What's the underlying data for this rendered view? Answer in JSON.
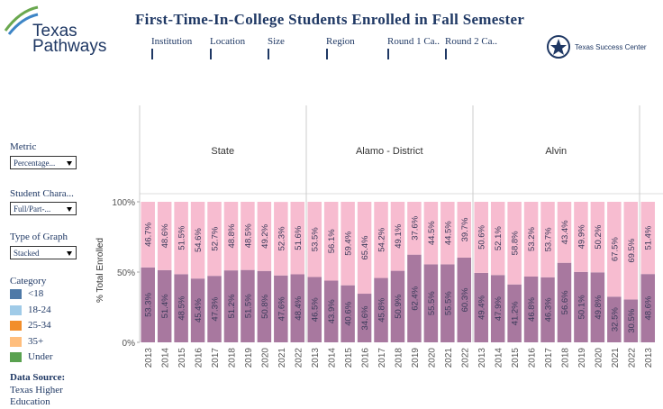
{
  "header": {
    "logo": "Texas Pathways",
    "title": "First-Time-In-College Students Enrolled in Fall Semester",
    "filters": [
      "Institution",
      "Location",
      "Size",
      "Region",
      "Round 1 Ca..",
      "Round 2 Ca.."
    ],
    "brand": "Texas Success Center"
  },
  "sidebar": {
    "controls": [
      {
        "label": "Metric",
        "value": "Percentage..."
      },
      {
        "label": "Student Chara...",
        "value": "Full/Part-..."
      },
      {
        "label": "Type of Graph",
        "value": "Stacked"
      }
    ],
    "legend_title": "Category",
    "legend": [
      {
        "name": "<18",
        "color": "#4e79a7"
      },
      {
        "name": "18-24",
        "color": "#a0cbe8"
      },
      {
        "name": "25-34",
        "color": "#f28e2b"
      },
      {
        "name": "35+",
        "color": "#ffbe7d"
      },
      {
        "name": "Under",
        "color": "#59a14f"
      }
    ],
    "source_title": "Data Source:",
    "source": [
      "Texas Higher",
      "Education"
    ]
  },
  "chart_data": [
    {
      "type": "bar",
      "stacked": true,
      "title": "State",
      "ylabel": "% Total Enrolled",
      "ylim": [
        0,
        100
      ],
      "yticks": [
        {
          "value": 0,
          "label": "0%"
        },
        {
          "value": 50,
          "label": "50%"
        },
        {
          "value": 100,
          "label": "100%"
        }
      ],
      "categories": [
        "2013",
        "2014",
        "2015",
        "2016",
        "2017",
        "2018",
        "2019",
        "2020",
        "2021",
        "2022"
      ],
      "series": [
        {
          "color": "#a8789f",
          "values": [
            53.3,
            51.4,
            48.5,
            45.4,
            47.3,
            51.2,
            51.5,
            50.8,
            47.6,
            48.4
          ],
          "value_labels": [
            "53.3%",
            "51.4%",
            "48.5%",
            "45.4%",
            "47.3%",
            "51.2%",
            "51.5%",
            "50.8%",
            "47.6%",
            "48.4%"
          ]
        },
        {
          "color": "#f7bcd0",
          "values": [
            46.7,
            48.6,
            51.5,
            54.6,
            52.7,
            48.8,
            48.5,
            49.2,
            52.3,
            51.6
          ],
          "value_labels": [
            "46.7%",
            "48.6%",
            "51.5%",
            "54.6%",
            "52.7%",
            "48.8%",
            "48.5%",
            "49.2%",
            "52.3%",
            "51.6%"
          ]
        }
      ]
    },
    {
      "type": "bar",
      "stacked": true,
      "title": "Alamo - District",
      "ylim": [
        0,
        100
      ],
      "categories": [
        "2013",
        "2014",
        "2015",
        "2016",
        "2017",
        "2018",
        "2019",
        "2020",
        "2021",
        "2022"
      ],
      "series": [
        {
          "color": "#a8789f",
          "values": [
            46.5,
            43.9,
            40.6,
            34.6,
            45.8,
            50.9,
            62.4,
            55.5,
            55.5,
            60.3
          ],
          "value_labels": [
            "46.5%",
            "43.9%",
            "40.6%",
            "34.6%",
            "45.8%",
            "50.9%",
            "62.4%",
            "55.5%",
            "55.5%",
            "60.3%"
          ]
        },
        {
          "color": "#f7bcd0",
          "values": [
            53.5,
            56.1,
            59.4,
            65.4,
            54.2,
            49.1,
            37.6,
            44.5,
            44.5,
            39.7
          ],
          "value_labels": [
            "53.5%",
            "56.1%",
            "59.4%",
            "65.4%",
            "54.2%",
            "49.1%",
            "37.6%",
            "44.5%",
            "44.5%",
            "39.7%"
          ]
        }
      ]
    },
    {
      "type": "bar",
      "stacked": true,
      "title": "Alvin",
      "ylim": [
        0,
        100
      ],
      "categories": [
        "2013",
        "2014",
        "2015",
        "2016",
        "2017",
        "2018",
        "2019",
        "2020",
        "2021",
        "2022"
      ],
      "series": [
        {
          "color": "#a8789f",
          "values": [
            49.4,
            47.9,
            41.2,
            46.8,
            46.3,
            56.6,
            50.1,
            49.8,
            32.5,
            30.5
          ],
          "value_labels": [
            "49.4%",
            "47.9%",
            "41.2%",
            "46.8%",
            "46.3%",
            "56.6%",
            "50.1%",
            "49.8%",
            "32.5%",
            "30.5%"
          ]
        },
        {
          "color": "#f7bcd0",
          "values": [
            50.6,
            52.1,
            58.8,
            53.2,
            53.7,
            43.4,
            49.9,
            50.2,
            67.5,
            69.5
          ],
          "value_labels": [
            "50.6%",
            "52.1%",
            "58.8%",
            "53.2%",
            "53.7%",
            "43.4%",
            "49.9%",
            "50.2%",
            "67.5%",
            "69.5%"
          ]
        }
      ]
    },
    {
      "type": "bar",
      "stacked": true,
      "ylim": [
        0,
        100
      ],
      "categories": [
        "2013"
      ],
      "series": [
        {
          "color": "#a8789f",
          "values": [
            48.6
          ],
          "value_labels": [
            "48.6%"
          ]
        },
        {
          "color": "#f7bcd0",
          "values": [
            51.4
          ],
          "value_labels": [
            "51.4%"
          ]
        }
      ]
    }
  ]
}
